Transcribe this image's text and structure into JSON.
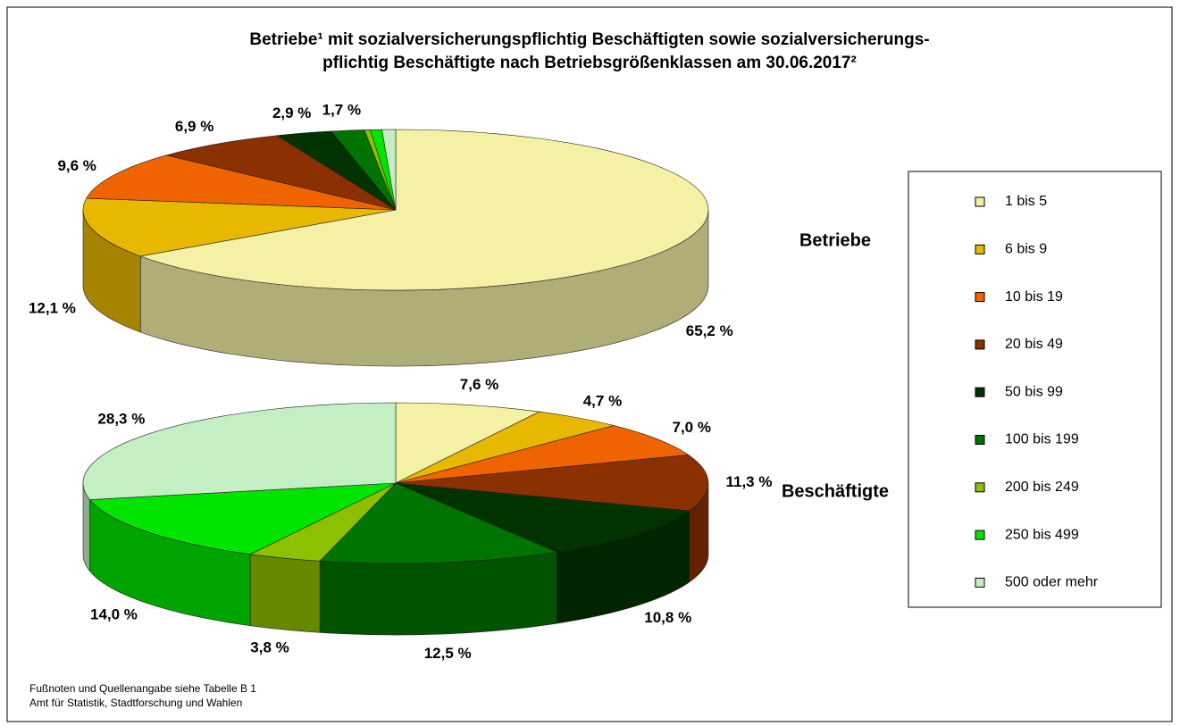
{
  "chart_data": {
    "type": "pie3d",
    "title": [
      "Betriebe¹ mit sozialversicherungspflichtig Beschäftigten sowie sozialversicherungs-",
      "pflichtig Beschäftigte nach Betriebsgrößenklassen am 30.06.2017²"
    ],
    "categories": [
      "1 bis 5",
      "6 bis 9",
      "10 bis 19",
      "20 bis 49",
      "50 bis 99",
      "100 bis 199",
      "200 bis 249",
      "250 bis 499",
      "500 oder mehr"
    ],
    "colors": [
      "#f4f0a4",
      "#e8b800",
      "#f06400",
      "#8b3000",
      "#003300",
      "#007400",
      "#8cc000",
      "#00e400",
      "#c4eec4"
    ],
    "series": [
      {
        "name": "Betriebe",
        "values": [
          65.2,
          12.1,
          9.6,
          6.9,
          2.9,
          1.7,
          0.3,
          0.6,
          0.7
        ],
        "value_labels": [
          "65,2 %",
          "12,1 %",
          "9,6 %",
          "6,9 %",
          "2,9 %",
          "1,7 %",
          null,
          null,
          null
        ]
      },
      {
        "name": "Beschäftigte",
        "values": [
          7.6,
          4.7,
          7.0,
          11.3,
          10.8,
          12.5,
          3.8,
          14.0,
          28.3
        ],
        "value_labels": [
          "7,6 %",
          "4,7 %",
          "7,0 %",
          "11,3 %",
          "10,8 %",
          "12,5 %",
          "3,8 %",
          "14,0 %",
          "28,3 %"
        ]
      }
    ]
  },
  "footnotes": [
    "Fußnoten und Quellenangabe siehe Tabelle B 1",
    "Amt für Statistik, Stadtforschung und Wahlen"
  ]
}
